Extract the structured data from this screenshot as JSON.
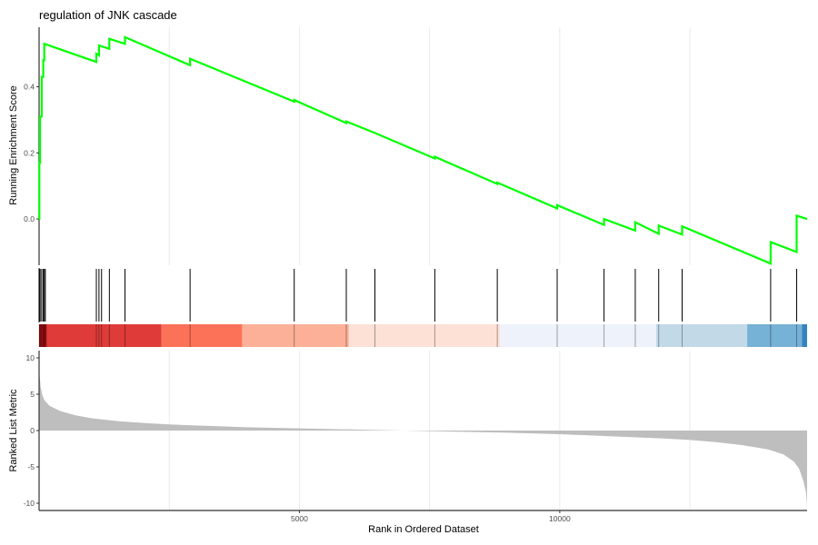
{
  "chart_data": {
    "type": "line",
    "title": "regulation of JNK cascade",
    "xlabel": "Rank in Ordered Dataset",
    "xlim": [
      0,
      14750
    ],
    "xticks": [
      5000,
      10000
    ],
    "panels": {
      "enrichment": {
        "ylabel": "Running Enrichment Score",
        "ylim": [
          -0.14,
          0.58
        ],
        "yticks": [
          0.0,
          0.2,
          0.4
        ],
        "color": "#00ff00",
        "hits": [
          5,
          20,
          50,
          80,
          100,
          120,
          1100,
          1150,
          1200,
          1350,
          1650,
          2900,
          4900,
          5900,
          6450,
          7600,
          8800,
          9950,
          10850,
          11450,
          11900,
          12350,
          14050,
          14550
        ],
        "points": [
          [
            0,
            0.0
          ],
          [
            5,
            0.0
          ],
          [
            5,
            0.17
          ],
          [
            20,
            0.17
          ],
          [
            20,
            0.31
          ],
          [
            50,
            0.31
          ],
          [
            50,
            0.43
          ],
          [
            80,
            0.43
          ],
          [
            80,
            0.48
          ],
          [
            100,
            0.48
          ],
          [
            100,
            0.53
          ],
          [
            1100,
            0.475
          ],
          [
            1100,
            0.5
          ],
          [
            1150,
            0.495
          ],
          [
            1150,
            0.525
          ],
          [
            1350,
            0.515
          ],
          [
            1350,
            0.545
          ],
          [
            1650,
            0.53
          ],
          [
            1650,
            0.55
          ],
          [
            2900,
            0.465
          ],
          [
            2900,
            0.485
          ],
          [
            4900,
            0.355
          ],
          [
            4900,
            0.36
          ],
          [
            5900,
            0.29
          ],
          [
            5900,
            0.295
          ],
          [
            6450,
            0.26
          ],
          [
            6450,
            0.26
          ],
          [
            7600,
            0.183
          ],
          [
            7600,
            0.188
          ],
          [
            8800,
            0.106
          ],
          [
            8800,
            0.11
          ],
          [
            9950,
            0.032
          ],
          [
            9950,
            0.042
          ],
          [
            10850,
            -0.018
          ],
          [
            10850,
            0.0
          ],
          [
            11450,
            -0.035
          ],
          [
            11450,
            -0.01
          ],
          [
            11900,
            -0.045
          ],
          [
            11900,
            -0.02
          ],
          [
            12350,
            -0.047
          ],
          [
            12350,
            -0.022
          ],
          [
            14050,
            -0.135
          ],
          [
            14050,
            -0.07
          ],
          [
            14550,
            -0.1
          ],
          [
            14550,
            0.01
          ],
          [
            14750,
            0.0
          ]
        ]
      },
      "ranked_list": {
        "ylabel": "Ranked List Metric",
        "ylim": [
          -11,
          11
        ],
        "yticks": [
          -10,
          -5,
          0,
          5,
          10
        ],
        "fill": "#bebebe",
        "curve": [
          [
            0,
            9.5
          ],
          [
            10,
            7.5
          ],
          [
            30,
            6.0
          ],
          [
            60,
            5.0
          ],
          [
            100,
            4.2
          ],
          [
            200,
            3.4
          ],
          [
            400,
            2.7
          ],
          [
            700,
            2.1
          ],
          [
            1000,
            1.7
          ],
          [
            1500,
            1.3
          ],
          [
            2000,
            1.05
          ],
          [
            2500,
            0.85
          ],
          [
            3000,
            0.7
          ],
          [
            4000,
            0.45
          ],
          [
            5000,
            0.3
          ],
          [
            6000,
            0.15
          ],
          [
            7000,
            0.0
          ],
          [
            8000,
            -0.15
          ],
          [
            9000,
            -0.3
          ],
          [
            10000,
            -0.5
          ],
          [
            11000,
            -0.8
          ],
          [
            12000,
            -1.1
          ],
          [
            12500,
            -1.3
          ],
          [
            13000,
            -1.6
          ],
          [
            13500,
            -2.0
          ],
          [
            14000,
            -2.6
          ],
          [
            14300,
            -3.3
          ],
          [
            14500,
            -4.3
          ],
          [
            14600,
            -5.3
          ],
          [
            14680,
            -7.0
          ],
          [
            14730,
            -8.5
          ],
          [
            14750,
            -10.5
          ]
        ]
      },
      "color_bar": {
        "segments": [
          {
            "from": 0,
            "to": 150,
            "color": "#a50f15"
          },
          {
            "from": 150,
            "to": 2350,
            "color": "#de3b39"
          },
          {
            "from": 2350,
            "to": 3900,
            "color": "#fb7258"
          },
          {
            "from": 3900,
            "to": 5950,
            "color": "#fcb098"
          },
          {
            "from": 5950,
            "to": 8850,
            "color": "#fde1d6"
          },
          {
            "from": 8850,
            "to": 11850,
            "color": "#eef3fb"
          },
          {
            "from": 11850,
            "to": 13600,
            "color": "#c2d9e8"
          },
          {
            "from": 13600,
            "to": 14650,
            "color": "#76b1d6"
          },
          {
            "from": 14650,
            "to": 14750,
            "color": "#3383c0"
          }
        ]
      }
    }
  }
}
